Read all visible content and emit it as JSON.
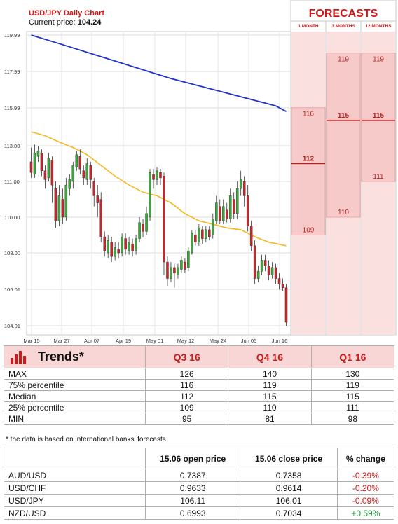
{
  "header": {
    "title": "USD/JPY Daily Chart",
    "current_price_label": "Current price:",
    "current_price_value": "104.24"
  },
  "chart_data": {
    "type": "candlestick",
    "y_ticks": [
      "119.99",
      "117.99",
      "115.99",
      "113.00",
      "111.00",
      "110.00",
      "108.00",
      "106.01",
      "104.01"
    ],
    "x_ticks": [
      "Mar 15",
      "Mar 27",
      "Apr 07",
      "Apr 19",
      "May 01",
      "May 12",
      "May 24",
      "Jun 05",
      "Jun 16"
    ],
    "candles": [
      {
        "o": 112.1,
        "c": 111.5,
        "h": 112.9,
        "l": 111.2
      },
      {
        "o": 111.4,
        "c": 112.6,
        "h": 113.1,
        "l": 111.2
      },
      {
        "o": 112.4,
        "c": 112.7,
        "h": 113.0,
        "l": 112.1
      },
      {
        "o": 112.6,
        "c": 111.6,
        "h": 112.8,
        "l": 111.3
      },
      {
        "o": 111.6,
        "c": 111.1,
        "h": 111.9,
        "l": 110.8
      },
      {
        "o": 111.2,
        "c": 112.3,
        "h": 112.6,
        "l": 111.0
      },
      {
        "o": 112.2,
        "c": 110.9,
        "h": 112.4,
        "l": 110.4
      },
      {
        "o": 110.8,
        "c": 109.8,
        "h": 111.0,
        "l": 109.4
      },
      {
        "o": 109.8,
        "c": 110.6,
        "h": 110.9,
        "l": 109.5
      },
      {
        "o": 110.5,
        "c": 110.0,
        "h": 110.8,
        "l": 109.6
      },
      {
        "o": 110.0,
        "c": 110.9,
        "h": 111.2,
        "l": 109.8
      },
      {
        "o": 110.8,
        "c": 111.1,
        "h": 111.4,
        "l": 110.6
      },
      {
        "o": 111.0,
        "c": 111.9,
        "h": 112.1,
        "l": 110.8
      },
      {
        "o": 111.8,
        "c": 112.5,
        "h": 112.7,
        "l": 111.6
      },
      {
        "o": 112.4,
        "c": 111.7,
        "h": 112.8,
        "l": 111.4
      },
      {
        "o": 111.6,
        "c": 111.2,
        "h": 111.9,
        "l": 110.9
      },
      {
        "o": 111.1,
        "c": 112.0,
        "h": 112.3,
        "l": 110.9
      },
      {
        "o": 111.9,
        "c": 111.1,
        "h": 112.1,
        "l": 110.8
      },
      {
        "o": 111.0,
        "c": 110.6,
        "h": 111.2,
        "l": 110.3
      },
      {
        "o": 110.6,
        "c": 110.4,
        "h": 110.9,
        "l": 110.0
      },
      {
        "o": 110.5,
        "c": 108.9,
        "h": 110.7,
        "l": 108.6
      },
      {
        "o": 108.9,
        "c": 108.1,
        "h": 109.2,
        "l": 107.8
      },
      {
        "o": 108.0,
        "c": 108.7,
        "h": 109.0,
        "l": 107.7
      },
      {
        "o": 108.6,
        "c": 107.8,
        "h": 108.9,
        "l": 107.5
      },
      {
        "o": 107.8,
        "c": 108.3,
        "h": 108.6,
        "l": 107.6
      },
      {
        "o": 108.2,
        "c": 108.0,
        "h": 108.6,
        "l": 107.7
      },
      {
        "o": 108.0,
        "c": 108.9,
        "h": 109.1,
        "l": 107.8
      },
      {
        "o": 108.8,
        "c": 108.2,
        "h": 109.1,
        "l": 107.9
      },
      {
        "o": 108.1,
        "c": 108.6,
        "h": 108.9,
        "l": 107.9
      },
      {
        "o": 108.5,
        "c": 108.1,
        "h": 108.8,
        "l": 107.8
      },
      {
        "o": 108.1,
        "c": 108.8,
        "h": 109.0,
        "l": 107.9
      },
      {
        "o": 108.8,
        "c": 109.7,
        "h": 110.0,
        "l": 108.6
      },
      {
        "o": 109.6,
        "c": 109.2,
        "h": 109.9,
        "l": 108.9
      },
      {
        "o": 109.2,
        "c": 110.1,
        "h": 110.3,
        "l": 109.0
      },
      {
        "o": 110.0,
        "c": 111.5,
        "h": 111.7,
        "l": 109.8
      },
      {
        "o": 111.4,
        "c": 111.1,
        "h": 111.7,
        "l": 110.8
      },
      {
        "o": 111.1,
        "c": 111.6,
        "h": 111.8,
        "l": 110.9
      },
      {
        "o": 111.5,
        "c": 111.2,
        "h": 111.7,
        "l": 110.9
      },
      {
        "o": 111.3,
        "c": 107.5,
        "h": 111.5,
        "l": 106.8
      },
      {
        "o": 107.5,
        "c": 106.6,
        "h": 107.8,
        "l": 106.2
      },
      {
        "o": 106.6,
        "c": 107.2,
        "h": 107.5,
        "l": 106.4
      },
      {
        "o": 107.2,
        "c": 106.9,
        "h": 107.4,
        "l": 106.1
      },
      {
        "o": 106.8,
        "c": 107.2,
        "h": 107.4,
        "l": 106.6
      },
      {
        "o": 107.1,
        "c": 107.6,
        "h": 107.8,
        "l": 106.9
      },
      {
        "o": 107.5,
        "c": 107.1,
        "h": 107.7,
        "l": 106.9
      },
      {
        "o": 107.2,
        "c": 108.1,
        "h": 108.3,
        "l": 107.0
      },
      {
        "o": 108.0,
        "c": 109.1,
        "h": 109.3,
        "l": 107.9
      },
      {
        "o": 109.0,
        "c": 108.6,
        "h": 109.3,
        "l": 108.4
      },
      {
        "o": 108.6,
        "c": 109.4,
        "h": 109.6,
        "l": 108.4
      },
      {
        "o": 109.3,
        "c": 108.8,
        "h": 109.5,
        "l": 108.5
      },
      {
        "o": 108.8,
        "c": 109.3,
        "h": 109.5,
        "l": 108.6
      },
      {
        "o": 109.3,
        "c": 108.9,
        "h": 109.5,
        "l": 108.7
      },
      {
        "o": 109.0,
        "c": 109.9,
        "h": 110.1,
        "l": 108.8
      },
      {
        "o": 109.8,
        "c": 110.4,
        "h": 110.6,
        "l": 109.6
      },
      {
        "o": 110.3,
        "c": 109.8,
        "h": 110.5,
        "l": 109.6
      },
      {
        "o": 109.8,
        "c": 110.3,
        "h": 110.5,
        "l": 109.6
      },
      {
        "o": 110.2,
        "c": 109.9,
        "h": 110.4,
        "l": 109.7
      },
      {
        "o": 109.9,
        "c": 110.6,
        "h": 110.8,
        "l": 109.7
      },
      {
        "o": 110.5,
        "c": 110.1,
        "h": 110.7,
        "l": 109.9
      },
      {
        "o": 110.1,
        "c": 110.8,
        "h": 111.0,
        "l": 109.9
      },
      {
        "o": 110.8,
        "c": 111.1,
        "h": 111.6,
        "l": 110.6
      },
      {
        "o": 111.0,
        "c": 110.6,
        "h": 111.3,
        "l": 110.3
      },
      {
        "o": 110.6,
        "c": 109.5,
        "h": 110.9,
        "l": 109.2
      },
      {
        "o": 109.5,
        "c": 108.4,
        "h": 109.8,
        "l": 108.1
      },
      {
        "o": 108.4,
        "c": 106.6,
        "h": 108.7,
        "l": 106.3
      },
      {
        "o": 106.6,
        "c": 107.0,
        "h": 107.3,
        "l": 106.4
      },
      {
        "o": 107.0,
        "c": 107.6,
        "h": 107.9,
        "l": 106.8
      },
      {
        "o": 107.6,
        "c": 107.3,
        "h": 107.9,
        "l": 107.0
      },
      {
        "o": 107.3,
        "c": 106.8,
        "h": 107.6,
        "l": 106.5
      },
      {
        "o": 106.8,
        "c": 107.2,
        "h": 107.5,
        "l": 106.6
      },
      {
        "o": 107.2,
        "c": 106.6,
        "h": 107.4,
        "l": 106.3
      },
      {
        "o": 106.6,
        "c": 106.3,
        "h": 106.9,
        "l": 106.0
      },
      {
        "o": 106.3,
        "c": 106.1,
        "h": 106.6,
        "l": 105.9
      },
      {
        "o": 106.1,
        "c": 104.2,
        "h": 106.3,
        "l": 104.0
      }
    ],
    "ma_long": [
      [
        0,
        119.99
      ],
      [
        10,
        119.4
      ],
      [
        20,
        118.8
      ],
      [
        30,
        118.2
      ],
      [
        40,
        117.6
      ],
      [
        50,
        117.1
      ],
      [
        60,
        116.6
      ],
      [
        70,
        116.1
      ],
      [
        73,
        115.7
      ]
    ],
    "ma_short": [
      [
        0,
        114.1
      ],
      [
        4,
        113.8
      ],
      [
        8,
        113.3
      ],
      [
        12,
        112.9
      ],
      [
        16,
        112.5
      ],
      [
        20,
        111.9
      ],
      [
        24,
        111.3
      ],
      [
        28,
        110.9
      ],
      [
        32,
        110.7
      ],
      [
        36,
        110.6
      ],
      [
        40,
        110.4
      ],
      [
        44,
        110.1
      ],
      [
        48,
        109.8
      ],
      [
        52,
        109.6
      ],
      [
        56,
        109.4
      ],
      [
        60,
        109.3
      ],
      [
        64,
        108.9
      ],
      [
        68,
        108.6
      ],
      [
        73,
        108.4
      ]
    ],
    "forecasts": {
      "title": "FORECASTS",
      "columns": [
        {
          "label": "1 MONTH",
          "max": "116",
          "median": "112",
          "min": "109",
          "max_v": 116,
          "median_v": 112,
          "min_v": 109
        },
        {
          "label": "3 MONTHS",
          "max": "119",
          "median": "115",
          "min": "110",
          "max_v": 119,
          "median_v": 115,
          "min_v": 110
        },
        {
          "label": "12 MONTHS",
          "max": "119",
          "median": "115",
          "min": "111",
          "max_v": 119,
          "median_v": 115,
          "min_v": 111
        }
      ]
    }
  },
  "trends": {
    "title": "Trends*",
    "columns": [
      "Q3 16",
      "Q4 16",
      "Q1 16"
    ],
    "rows": [
      {
        "label": "MAX",
        "values": [
          "126",
          "140",
          "130"
        ]
      },
      {
        "label": "75% percentile",
        "values": [
          "116",
          "119",
          "119"
        ]
      },
      {
        "label": "Median",
        "values": [
          "112",
          "115",
          "115"
        ]
      },
      {
        "label": "25% percentile",
        "values": [
          "109",
          "110",
          "111"
        ]
      },
      {
        "label": "MIN",
        "values": [
          "95",
          "81",
          "98"
        ]
      }
    ],
    "footnote": "* the data is based on international banks' forecasts"
  },
  "rates": {
    "columns": [
      "15.06 open price",
      "15.06 close price",
      "% change"
    ],
    "rows": [
      {
        "pair": "AUD/USD",
        "open": "0.7387",
        "close": "0.7358",
        "change": "-0.39%",
        "dir": "neg"
      },
      {
        "pair": "USD/CHF",
        "open": "0.9633",
        "close": "0.9614",
        "change": "-0.20%",
        "dir": "neg"
      },
      {
        "pair": "USD/JPY",
        "open": "106.11",
        "close": "106.01",
        "change": "-0.09%",
        "dir": "neg"
      },
      {
        "pair": "NZD/USD",
        "open": "0.6993",
        "close": "0.7034",
        "change": "+0.59%",
        "dir": "pos"
      }
    ]
  },
  "colors": {
    "bull": "#3aa839",
    "bear": "#c8262b",
    "ma_long": "#2233cc",
    "ma_short": "#f5b820",
    "forecast_fill": "#fbe0e0",
    "forecast_border": "#e79a9a",
    "accent": "#d01818"
  }
}
